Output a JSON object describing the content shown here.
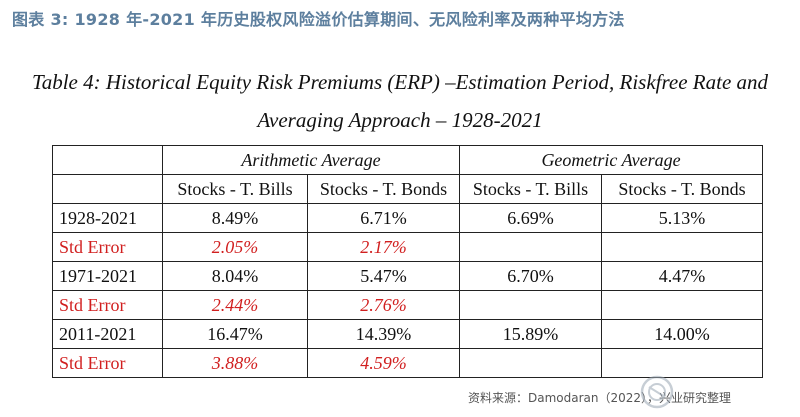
{
  "figure_caption": "图表 3:  1928 年-2021 年历史股权风险溢价估算期间、无风险利率及两种平均方法",
  "table": {
    "title_line_1": "Table 4: Historical Equity Risk Premiums (ERP) –Estimation Period, Riskfree Rate and",
    "title_line_2": "Averaging Approach – 1928-2021",
    "group_headers": [
      "Arithmetic Average",
      "Geometric Average"
    ],
    "column_headers": [
      "Stocks - T. Bills",
      "Stocks - T. Bonds",
      "Stocks - T. Bills",
      "Stocks - T. Bonds"
    ],
    "rows": [
      {
        "label": "1928-2021",
        "values": [
          "8.49%",
          "6.71%",
          "6.69%",
          "5.13%"
        ]
      },
      {
        "label": "Std Error",
        "values": [
          "2.05%",
          "2.17%",
          "",
          ""
        ]
      },
      {
        "label": "1971-2021",
        "values": [
          "8.04%",
          "5.47%",
          "6.70%",
          "4.47%"
        ]
      },
      {
        "label": "Std Error",
        "values": [
          "2.44%",
          "2.76%",
          "",
          ""
        ]
      },
      {
        "label": "2011-2021",
        "values": [
          "16.47%",
          "14.39%",
          "15.89%",
          "14.00%"
        ]
      },
      {
        "label": "Std Error",
        "values": [
          "3.88%",
          "4.59%",
          "",
          ""
        ]
      }
    ]
  },
  "source": "资料来源：Damodaran（2022），兴业研究整理",
  "watermark_icon": "snowball-logo-icon",
  "colors": {
    "caption": "#5d7f9e",
    "std_error": "#d11f1f"
  }
}
